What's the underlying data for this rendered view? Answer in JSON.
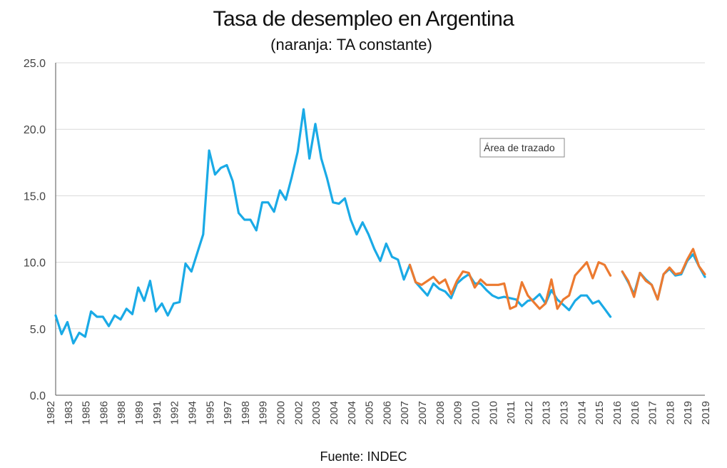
{
  "title": "Tasa de desempleo en Argentina",
  "subtitle": "(naranja: TA constante)",
  "source": "Fuente: INDEC",
  "tooltip": "Área de trazado",
  "colors": {
    "blue": "#1AAAE6",
    "orange": "#EC7A30",
    "grid": "#d9d9d9",
    "axis": "#555555"
  },
  "chart_data": {
    "type": "line",
    "ylim": [
      0,
      25
    ],
    "yticks": [
      "0.0",
      "5.0",
      "10.0",
      "15.0",
      "20.0",
      "25.0"
    ],
    "x_labels": [
      "1982",
      "1983",
      "1985",
      "1986",
      "1988",
      "1989",
      "1991",
      "1992",
      "1994",
      "1995",
      "1997",
      "1998",
      "1999",
      "2000",
      "2002",
      "2003",
      "2004",
      "2004",
      "2005",
      "2006",
      "2007",
      "2007",
      "2008",
      "2009",
      "2010",
      "2010",
      "2011",
      "2012",
      "2013",
      "2013",
      "2014",
      "2015",
      "2016",
      "2016",
      "2017",
      "2018",
      "2019",
      "2019"
    ],
    "x_range": [
      0,
      108
    ],
    "series": [
      {
        "color": "blue",
        "segments": [
          [
            [
              0,
              6.0
            ],
            [
              1,
              4.6
            ],
            [
              2,
              5.5
            ],
            [
              3,
              3.9
            ],
            [
              4,
              4.7
            ],
            [
              5,
              4.4
            ],
            [
              6,
              6.3
            ],
            [
              7,
              5.9
            ],
            [
              8,
              5.9
            ],
            [
              9,
              5.2
            ],
            [
              10,
              6.0
            ],
            [
              11,
              5.7
            ],
            [
              12,
              6.5
            ],
            [
              13,
              6.1
            ],
            [
              14,
              8.1
            ],
            [
              15,
              7.1
            ],
            [
              16,
              8.6
            ],
            [
              17,
              6.3
            ],
            [
              18,
              6.9
            ],
            [
              19,
              6.0
            ],
            [
              20,
              6.9
            ],
            [
              21,
              7.0
            ],
            [
              22,
              9.9
            ],
            [
              23,
              9.3
            ],
            [
              24,
              10.7
            ],
            [
              25,
              12.1
            ],
            [
              26,
              18.4
            ],
            [
              27,
              16.6
            ],
            [
              28,
              17.1
            ],
            [
              29,
              17.3
            ],
            [
              30,
              16.1
            ],
            [
              31,
              13.7
            ],
            [
              32,
              13.2
            ],
            [
              33,
              13.2
            ],
            [
              34,
              12.4
            ],
            [
              35,
              14.5
            ],
            [
              36,
              14.5
            ],
            [
              37,
              13.8
            ],
            [
              38,
              15.4
            ],
            [
              39,
              14.7
            ],
            [
              40,
              16.4
            ],
            [
              41,
              18.3
            ],
            [
              42,
              21.5
            ],
            [
              43,
              17.8
            ],
            [
              44,
              20.4
            ],
            [
              45,
              17.8
            ],
            [
              46,
              16.3
            ],
            [
              47,
              14.5
            ],
            [
              48,
              14.4
            ],
            [
              49,
              14.8
            ],
            [
              50,
              13.2
            ],
            [
              51,
              12.1
            ],
            [
              52,
              13.0
            ],
            [
              53,
              12.1
            ],
            [
              54,
              11.0
            ],
            [
              55,
              10.1
            ],
            [
              56,
              11.4
            ],
            [
              57,
              10.4
            ],
            [
              58,
              10.2
            ],
            [
              59,
              8.7
            ],
            [
              60,
              9.8
            ],
            [
              61,
              8.5
            ],
            [
              62,
              8.0
            ],
            [
              63,
              7.5
            ],
            [
              64,
              8.4
            ],
            [
              65,
              8.0
            ],
            [
              66,
              7.8
            ],
            [
              67,
              7.3
            ],
            [
              68,
              8.4
            ],
            [
              69,
              8.8
            ],
            [
              70,
              9.1
            ],
            [
              71,
              8.4
            ],
            [
              72,
              8.4
            ],
            [
              73,
              7.9
            ],
            [
              74,
              7.5
            ],
            [
              75,
              7.3
            ],
            [
              76,
              7.4
            ],
            [
              77,
              7.3
            ],
            [
              78,
              7.2
            ],
            [
              79,
              6.7
            ],
            [
              80,
              7.1
            ],
            [
              81,
              7.2
            ],
            [
              82,
              7.6
            ],
            [
              83,
              6.9
            ],
            [
              84,
              7.9
            ],
            [
              85,
              7.2
            ],
            [
              86,
              6.8
            ],
            [
              87,
              6.4
            ],
            [
              88,
              7.1
            ],
            [
              89,
              7.5
            ],
            [
              90,
              7.5
            ],
            [
              91,
              6.9
            ],
            [
              92,
              7.1
            ],
            [
              93,
              6.5
            ],
            [
              94,
              5.9
            ]
          ],
          [
            [
              95,
              null
            ]
          ],
          [
            [
              96,
              9.3
            ],
            [
              97,
              8.5
            ],
            [
              98,
              7.6
            ],
            [
              99,
              9.2
            ],
            [
              100,
              8.7
            ],
            [
              101,
              8.3
            ],
            [
              102,
              7.2
            ],
            [
              103,
              9.1
            ],
            [
              104,
              9.5
            ],
            [
              105,
              9.0
            ],
            [
              106,
              9.1
            ],
            [
              107,
              10.1
            ],
            [
              108,
              10.6
            ],
            [
              109,
              9.7
            ],
            [
              110,
              8.9
            ]
          ]
        ]
      },
      {
        "color": "orange",
        "segments": [
          [
            [
              60,
              9.8
            ],
            [
              61,
              8.5
            ],
            [
              62,
              8.3
            ],
            [
              63,
              8.6
            ],
            [
              64,
              8.9
            ],
            [
              65,
              8.4
            ],
            [
              66,
              8.7
            ],
            [
              67,
              7.6
            ],
            [
              68,
              8.6
            ],
            [
              69,
              9.3
            ],
            [
              70,
              9.2
            ],
            [
              71,
              8.1
            ],
            [
              72,
              8.7
            ],
            [
              73,
              8.3
            ],
            [
              74,
              8.3
            ],
            [
              75,
              8.3
            ],
            [
              76,
              8.4
            ],
            [
              77,
              6.5
            ],
            [
              78,
              6.7
            ],
            [
              79,
              8.5
            ],
            [
              80,
              7.5
            ],
            [
              81,
              7.0
            ],
            [
              82,
              6.5
            ],
            [
              83,
              6.9
            ],
            [
              84,
              8.7
            ],
            [
              85,
              6.5
            ],
            [
              86,
              7.2
            ],
            [
              87,
              7.5
            ],
            [
              88,
              9.0
            ],
            [
              89,
              9.5
            ],
            [
              90,
              10.0
            ],
            [
              91,
              8.8
            ],
            [
              92,
              10.0
            ],
            [
              93,
              9.8
            ],
            [
              94,
              9.0
            ]
          ],
          [
            [
              96,
              9.3
            ],
            [
              97,
              8.6
            ],
            [
              98,
              7.4
            ],
            [
              99,
              9.2
            ],
            [
              100,
              8.6
            ],
            [
              101,
              8.3
            ],
            [
              102,
              7.2
            ],
            [
              103,
              9.1
            ],
            [
              104,
              9.6
            ],
            [
              105,
              9.1
            ],
            [
              106,
              9.2
            ],
            [
              107,
              10.2
            ],
            [
              108,
              11.0
            ],
            [
              109,
              9.7
            ],
            [
              110,
              9.1
            ]
          ]
        ]
      }
    ]
  }
}
